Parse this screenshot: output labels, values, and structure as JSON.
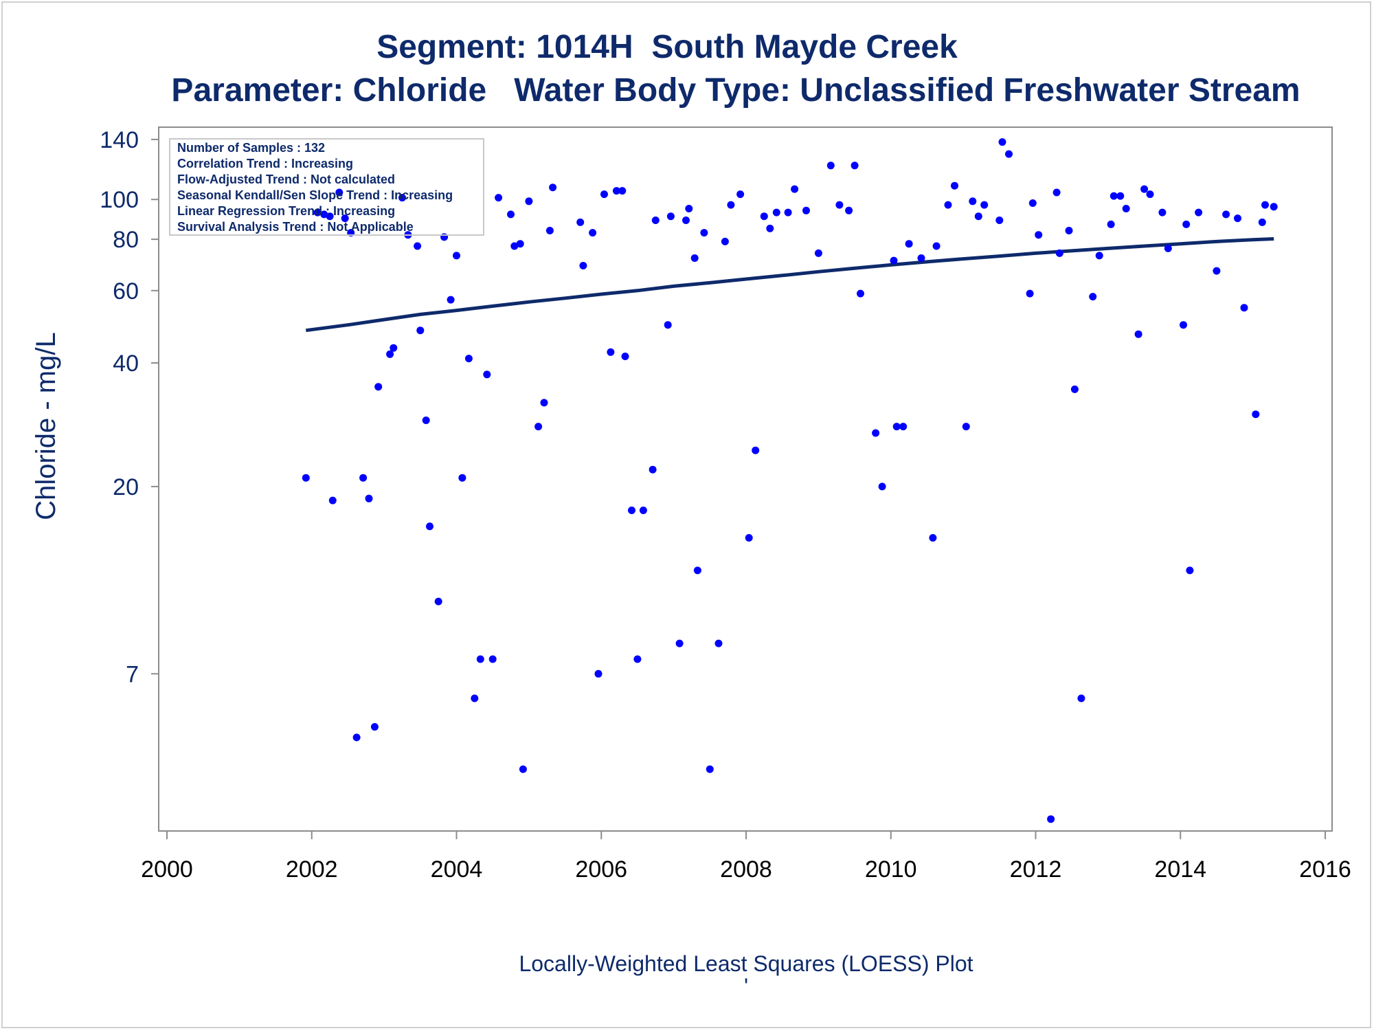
{
  "chart_data": {
    "type": "scatter",
    "title": "Segment: 1014H  South Mayde Creek",
    "subtitle": "Parameter: Chloride   Water Body Type: Unclassified Freshwater Stream",
    "xlabel": "",
    "ylabel": "Chloride - mg/L",
    "footnote": "Locally-Weighted Least Squares (LOESS) Plot",
    "footnote_mark": "'",
    "x_scale": "linear (year)",
    "y_scale": "log",
    "xlim": [
      2000,
      2016
    ],
    "ylim": [
      2.9,
      150
    ],
    "x_ticks": [
      "2000",
      "2002",
      "2004",
      "2006",
      "2008",
      "2010",
      "2012",
      "2014",
      "2016"
    ],
    "x_tick_values": [
      2000,
      2002,
      2004,
      2006,
      2008,
      2010,
      2012,
      2014,
      2016
    ],
    "y_ticks": [
      "7",
      "20",
      "40",
      "60",
      "80",
      "100",
      "140"
    ],
    "y_tick_values": [
      7,
      20,
      40,
      60,
      80,
      100,
      140
    ],
    "grid": false,
    "legend_position": "top-left",
    "legend_lines": [
      "Number of Samples : 132",
      "Correlation Trend : Increasing",
      "Flow-Adjusted Trend : Not calculated",
      "Seasonal Kendall/Sen Slope Trend : Increasing",
      "Linear Regression Trend : Increasing",
      "Survival Analysis Trend : Not Applicable"
    ],
    "colors": {
      "points": "#0000ff",
      "loess_line": "#0e2a6b",
      "text": "#0e2a6b",
      "axis": "#888888"
    },
    "series": [
      {
        "type": "scatter",
        "points": [
          [
            2001.92,
            21
          ],
          [
            2002.08,
            93
          ],
          [
            2002.17,
            92
          ],
          [
            2002.25,
            91
          ],
          [
            2002.29,
            18.5
          ],
          [
            2002.38,
            104
          ],
          [
            2002.46,
            90
          ],
          [
            2002.54,
            83
          ],
          [
            2002.62,
            4.9
          ],
          [
            2002.71,
            21
          ],
          [
            2002.79,
            18.7
          ],
          [
            2002.87,
            5.2
          ],
          [
            2002.92,
            35
          ],
          [
            2003.08,
            42
          ],
          [
            2003.13,
            43.5
          ],
          [
            2003.25,
            101
          ],
          [
            2003.33,
            82
          ],
          [
            2003.46,
            77
          ],
          [
            2003.5,
            48
          ],
          [
            2003.58,
            29
          ],
          [
            2003.63,
            16
          ],
          [
            2003.75,
            10.5
          ],
          [
            2003.83,
            81
          ],
          [
            2003.92,
            57
          ],
          [
            2004,
            73
          ],
          [
            2004.08,
            21
          ],
          [
            2004.17,
            41
          ],
          [
            2004.25,
            6.1
          ],
          [
            2004.33,
            7.6
          ],
          [
            2004.42,
            37.5
          ],
          [
            2004.5,
            7.6
          ],
          [
            2004.58,
            101
          ],
          [
            2004.75,
            92
          ],
          [
            2004.8,
            77
          ],
          [
            2004.88,
            78
          ],
          [
            2004.92,
            4.1
          ],
          [
            2005,
            99
          ],
          [
            2005.13,
            28
          ],
          [
            2005.21,
            32
          ],
          [
            2005.29,
            84
          ],
          [
            2005.33,
            107
          ],
          [
            2005.71,
            88
          ],
          [
            2005.75,
            69
          ],
          [
            2005.88,
            83
          ],
          [
            2005.96,
            7
          ],
          [
            2006.04,
            103
          ],
          [
            2006.13,
            42.5
          ],
          [
            2006.21,
            105
          ],
          [
            2006.29,
            105
          ],
          [
            2006.33,
            41.5
          ],
          [
            2006.42,
            17.5
          ],
          [
            2006.5,
            7.6
          ],
          [
            2006.58,
            17.5
          ],
          [
            2006.71,
            22
          ],
          [
            2006.75,
            89
          ],
          [
            2006.92,
            49.5
          ],
          [
            2006.96,
            91
          ],
          [
            2007.08,
            8.3
          ],
          [
            2007.17,
            89
          ],
          [
            2007.21,
            95
          ],
          [
            2007.29,
            72
          ],
          [
            2007.33,
            12.5
          ],
          [
            2007.42,
            83
          ],
          [
            2007.5,
            4.1
          ],
          [
            2007.62,
            8.3
          ],
          [
            2007.71,
            79
          ],
          [
            2007.79,
            97
          ],
          [
            2007.92,
            103
          ],
          [
            2008.04,
            15
          ],
          [
            2008.13,
            24.5
          ],
          [
            2008.25,
            91
          ],
          [
            2008.33,
            85
          ],
          [
            2008.42,
            93
          ],
          [
            2008.58,
            93
          ],
          [
            2008.67,
            106
          ],
          [
            2008.83,
            94
          ],
          [
            2009,
            74
          ],
          [
            2009.17,
            121
          ],
          [
            2009.29,
            97
          ],
          [
            2009.42,
            94
          ],
          [
            2009.5,
            121
          ],
          [
            2009.58,
            59
          ],
          [
            2009.79,
            27
          ],
          [
            2009.88,
            20
          ],
          [
            2010.04,
            71
          ],
          [
            2010.08,
            28
          ],
          [
            2010.17,
            28
          ],
          [
            2010.25,
            78
          ],
          [
            2010.42,
            72
          ],
          [
            2010.58,
            15
          ],
          [
            2010.63,
            77
          ],
          [
            2010.79,
            97
          ],
          [
            2010.88,
            108
          ],
          [
            2011.04,
            28
          ],
          [
            2011.13,
            99
          ],
          [
            2011.21,
            91
          ],
          [
            2011.29,
            97
          ],
          [
            2011.5,
            89
          ],
          [
            2011.54,
            138
          ],
          [
            2011.63,
            129
          ],
          [
            2011.92,
            59
          ],
          [
            2011.96,
            98
          ],
          [
            2012.04,
            82
          ],
          [
            2012.21,
            3.1
          ],
          [
            2012.29,
            104
          ],
          [
            2012.33,
            74
          ],
          [
            2012.46,
            84
          ],
          [
            2012.54,
            34.5
          ],
          [
            2012.63,
            6.1
          ],
          [
            2012.79,
            58
          ],
          [
            2012.88,
            73
          ],
          [
            2013.04,
            87
          ],
          [
            2013.08,
            102
          ],
          [
            2013.17,
            102
          ],
          [
            2013.25,
            95
          ],
          [
            2013.42,
            47
          ],
          [
            2013.5,
            106
          ],
          [
            2013.58,
            103
          ],
          [
            2013.75,
            93
          ],
          [
            2013.83,
            76
          ],
          [
            2014.04,
            49.5
          ],
          [
            2014.08,
            87
          ],
          [
            2014.13,
            12.5
          ],
          [
            2014.25,
            93
          ],
          [
            2014.5,
            67
          ],
          [
            2014.63,
            92
          ],
          [
            2014.79,
            90
          ],
          [
            2014.88,
            54.5
          ],
          [
            2015.04,
            30
          ],
          [
            2015.13,
            88
          ],
          [
            2015.17,
            97
          ],
          [
            2015.29,
            96
          ]
        ]
      },
      {
        "type": "line",
        "points": [
          [
            2001.92,
            48
          ],
          [
            2002.5,
            49.5
          ],
          [
            2003,
            51
          ],
          [
            2003.5,
            52.5
          ],
          [
            2004,
            53.7
          ],
          [
            2004.5,
            55
          ],
          [
            2005,
            56.3
          ],
          [
            2005.5,
            57.5
          ],
          [
            2006,
            58.8
          ],
          [
            2006.5,
            60
          ],
          [
            2007,
            61.5
          ],
          [
            2007.5,
            62.7
          ],
          [
            2008,
            64
          ],
          [
            2008.5,
            65.3
          ],
          [
            2009,
            66.7
          ],
          [
            2009.5,
            68
          ],
          [
            2010,
            69.3
          ],
          [
            2010.5,
            70.5
          ],
          [
            2011,
            71.7
          ],
          [
            2011.5,
            72.8
          ],
          [
            2012,
            74
          ],
          [
            2012.5,
            75
          ],
          [
            2013,
            76
          ],
          [
            2013.5,
            77
          ],
          [
            2014,
            78
          ],
          [
            2014.5,
            79
          ],
          [
            2015,
            79.8
          ],
          [
            2015.29,
            80.2
          ]
        ]
      }
    ]
  }
}
